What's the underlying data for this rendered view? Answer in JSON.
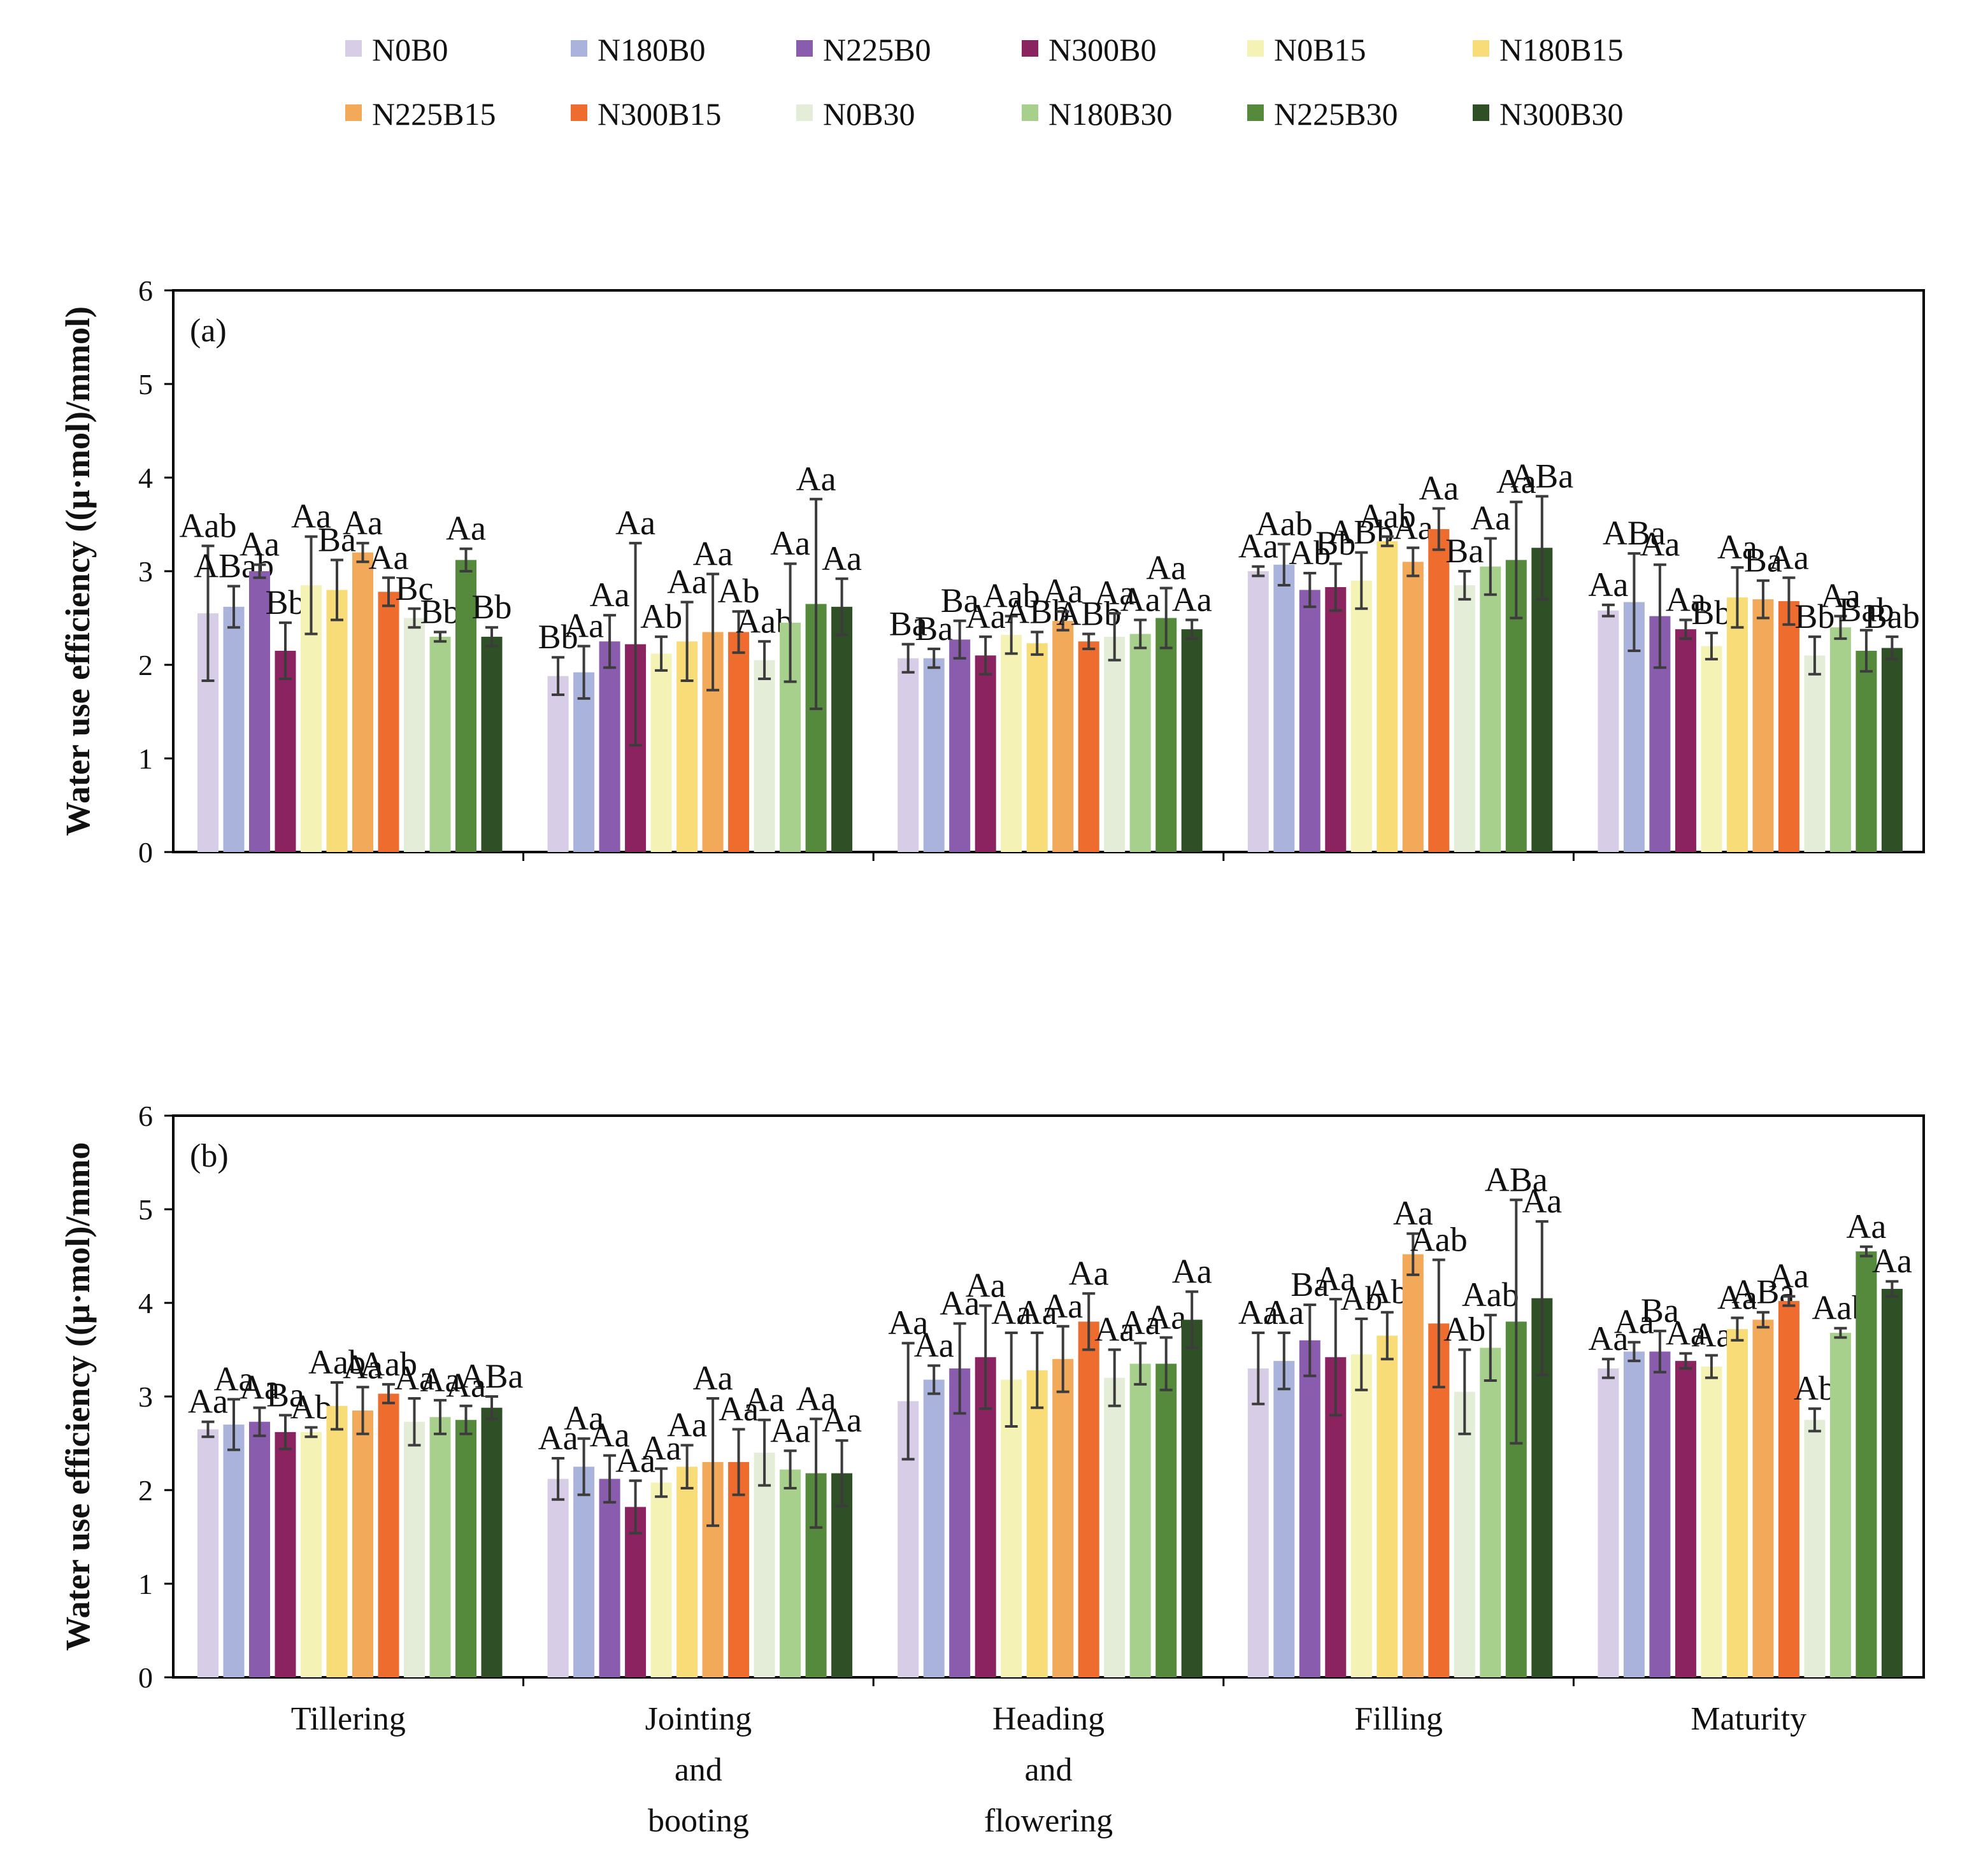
{
  "chart_data": {
    "type": "bar",
    "legend": {
      "placement": "top",
      "entries": [
        {
          "name": "N0B0",
          "color": "#d8cde6"
        },
        {
          "name": "N180B0",
          "color": "#aab3dc"
        },
        {
          "name": "N225B0",
          "color": "#8a5cad"
        },
        {
          "name": "N300B0",
          "color": "#8b2361"
        },
        {
          "name": "N0B15",
          "color": "#f5f2b5"
        },
        {
          "name": "N180B15",
          "color": "#f7dc78"
        },
        {
          "name": "N225B15",
          "color": "#f2a95a"
        },
        {
          "name": "N300B15",
          "color": "#ee6c2e"
        },
        {
          "name": "N0B30",
          "color": "#e3edd8"
        },
        {
          "name": "N180B30",
          "color": "#a8d08d"
        },
        {
          "name": "N225B30",
          "color": "#558a3c"
        },
        {
          "name": "N300B30",
          "color": "#2f4f26"
        }
      ]
    },
    "categories": [
      "Tillering",
      "Jointing and booting",
      "Heading and flowering",
      "Filling",
      "Maturity"
    ],
    "category_lines": [
      [
        "Tillering"
      ],
      [
        "Jointing",
        "and",
        "booting"
      ],
      [
        "Heading",
        "and",
        "flowering"
      ],
      [
        "Filling"
      ],
      [
        "Maturity"
      ]
    ],
    "ylabel": "Water use efficiency ((μ·mol)/mmol)",
    "ylabel_b": "Water use efficiency ((μ·mol)/mmo",
    "ylim": [
      0,
      6
    ],
    "yticks": [
      "0",
      "1",
      "2",
      "3",
      "4",
      "5",
      "6"
    ],
    "panels": [
      {
        "label": "(a)",
        "series": [
          {
            "name": "N0B0",
            "values": [
              2.55,
              1.88,
              2.07,
              3.0,
              2.58
            ],
            "errors": [
              0.72,
              0.2,
              0.15,
              0.05,
              0.06
            ],
            "labels": [
              "Aab",
              "Bb",
              "Ba",
              "Aa",
              "Aa"
            ]
          },
          {
            "name": "N180B0",
            "values": [
              2.62,
              1.92,
              2.07,
              3.07,
              2.67
            ],
            "errors": [
              0.22,
              0.28,
              0.1,
              0.22,
              0.52
            ],
            "labels": [
              "ABab",
              "Aa",
              "Ba",
              "Aab",
              "ABa"
            ]
          },
          {
            "name": "N225B0",
            "values": [
              3.0,
              2.25,
              2.27,
              2.8,
              2.52
            ],
            "errors": [
              0.07,
              0.28,
              0.2,
              0.18,
              0.55
            ],
            "labels": [
              "Aa",
              "Aa",
              "Ba",
              "Ab",
              "Aa"
            ]
          },
          {
            "name": "N300B0",
            "values": [
              2.15,
              2.22,
              2.1,
              2.83,
              2.38
            ],
            "errors": [
              0.3,
              1.08,
              0.2,
              0.25,
              0.1
            ],
            "labels": [
              "Bb",
              "Aa",
              "Aa",
              "Bb",
              "Aa"
            ]
          },
          {
            "name": "N0B15",
            "values": [
              2.85,
              2.12,
              2.32,
              2.9,
              2.2
            ],
            "errors": [
              0.52,
              0.18,
              0.2,
              0.3,
              0.14
            ],
            "labels": [
              "Aa",
              "Ab",
              "Aab",
              "ABb",
              "Bb"
            ]
          },
          {
            "name": "N180B15",
            "values": [
              2.8,
              2.25,
              2.23,
              3.32,
              2.72
            ],
            "errors": [
              0.32,
              0.42,
              0.12,
              0.05,
              0.32
            ],
            "labels": [
              "Ba",
              "Aa",
              "ABb",
              "Aab",
              "Aa"
            ]
          },
          {
            "name": "N225B15",
            "values": [
              3.2,
              2.35,
              2.47,
              3.1,
              2.7
            ],
            "errors": [
              0.1,
              0.62,
              0.1,
              0.15,
              0.2
            ],
            "labels": [
              "Aa",
              "Aa",
              "Aa",
              "Aa",
              "Ba"
            ]
          },
          {
            "name": "N300B15",
            "values": [
              2.78,
              2.35,
              2.25,
              3.45,
              2.68
            ],
            "errors": [
              0.15,
              0.22,
              0.08,
              0.22,
              0.25
            ],
            "labels": [
              "Aa",
              "Ab",
              "ABb",
              "Aa",
              "Aa"
            ]
          },
          {
            "name": "N0B30",
            "values": [
              2.5,
              2.05,
              2.3,
              2.85,
              2.1
            ],
            "errors": [
              0.1,
              0.2,
              0.25,
              0.15,
              0.2
            ],
            "labels": [
              "Bc",
              "Aab",
              "Aa",
              "Ba",
              "Bb"
            ]
          },
          {
            "name": "N180B30",
            "values": [
              2.3,
              2.45,
              2.33,
              3.05,
              2.4
            ],
            "errors": [
              0.05,
              0.63,
              0.15,
              0.3,
              0.12
            ],
            "labels": [
              "Bb",
              "Aa",
              "Aa",
              "Aa",
              "Aa"
            ]
          },
          {
            "name": "N225B30",
            "values": [
              3.12,
              2.65,
              2.5,
              3.12,
              2.15
            ],
            "errors": [
              0.12,
              1.12,
              0.32,
              0.62,
              0.22
            ],
            "labels": [
              "Aa",
              "Aa",
              "Aa",
              "Aa",
              "Bab"
            ]
          },
          {
            "name": "N300B30",
            "values": [
              2.3,
              2.62,
              2.38,
              3.25,
              2.18
            ],
            "errors": [
              0.1,
              0.3,
              0.1,
              0.55,
              0.12
            ],
            "labels": [
              "Bb",
              "Aa",
              "Aa",
              "ABa",
              "Bab"
            ]
          }
        ]
      },
      {
        "label": "(b)",
        "series": [
          {
            "name": "N0B0",
            "values": [
              2.65,
              2.12,
              2.95,
              3.3,
              3.3
            ],
            "errors": [
              0.08,
              0.22,
              0.62,
              0.38,
              0.1
            ],
            "labels": [
              "Aa",
              "Aa",
              "Aa",
              "Aa",
              "Aa"
            ]
          },
          {
            "name": "N180B0",
            "values": [
              2.7,
              2.25,
              3.18,
              3.38,
              3.48
            ],
            "errors": [
              0.27,
              0.3,
              0.15,
              0.3,
              0.1
            ],
            "labels": [
              "Aa",
              "Aa",
              "Aa",
              "Aa",
              "Aa"
            ]
          },
          {
            "name": "N225B0",
            "values": [
              2.73,
              2.12,
              3.3,
              3.6,
              3.48
            ],
            "errors": [
              0.15,
              0.25,
              0.48,
              0.38,
              0.22
            ],
            "labels": [
              "Aa",
              "Aa",
              "Aa",
              "Ba",
              "Ba"
            ]
          },
          {
            "name": "N300B0",
            "values": [
              2.62,
              1.82,
              3.42,
              3.42,
              3.38
            ],
            "errors": [
              0.18,
              0.28,
              0.55,
              0.62,
              0.08
            ],
            "labels": [
              "Ba",
              "Aa",
              "Aa",
              "Aa",
              "Aa"
            ]
          },
          {
            "name": "N0B15",
            "values": [
              2.62,
              2.08,
              3.18,
              3.45,
              3.32
            ],
            "errors": [
              0.05,
              0.15,
              0.5,
              0.38,
              0.12
            ],
            "labels": [
              "Ab",
              "Aa",
              "Aa",
              "Ab",
              "Aa"
            ]
          },
          {
            "name": "N180B15",
            "values": [
              2.9,
              2.25,
              3.28,
              3.65,
              3.72
            ],
            "errors": [
              0.25,
              0.23,
              0.4,
              0.25,
              0.12
            ],
            "labels": [
              "Aab",
              "Aa",
              "Aa",
              "Ab",
              "Aa"
            ]
          },
          {
            "name": "N225B15",
            "values": [
              2.85,
              2.3,
              3.4,
              4.52,
              3.82
            ],
            "errors": [
              0.25,
              0.68,
              0.35,
              0.22,
              0.08
            ],
            "labels": [
              "Aa",
              "Aa",
              "Aa",
              "Aa",
              "ABa"
            ]
          },
          {
            "name": "N300B15",
            "values": [
              3.03,
              2.3,
              3.8,
              3.78,
              4.02
            ],
            "errors": [
              0.1,
              0.35,
              0.3,
              0.68,
              0.05
            ],
            "labels": [
              "Aab",
              "Aa",
              "Aa",
              "Aab",
              "Aa"
            ]
          },
          {
            "name": "N0B30",
            "values": [
              2.73,
              2.4,
              3.2,
              3.05,
              2.75
            ],
            "errors": [
              0.25,
              0.35,
              0.3,
              0.45,
              0.12
            ],
            "labels": [
              "Aa",
              "Aa",
              "Aa",
              "Ab",
              "Ab"
            ]
          },
          {
            "name": "N180B30",
            "values": [
              2.78,
              2.22,
              3.35,
              3.52,
              3.68
            ],
            "errors": [
              0.18,
              0.2,
              0.22,
              0.35,
              0.05
            ],
            "labels": [
              "Aa",
              "Aa",
              "Aa",
              "Aab",
              "Aab"
            ]
          },
          {
            "name": "N225B30",
            "values": [
              2.75,
              2.18,
              3.35,
              3.8,
              4.55
            ],
            "errors": [
              0.15,
              0.58,
              0.28,
              1.3,
              0.05
            ],
            "labels": [
              "Aa",
              "Aa",
              "Aa",
              "ABa",
              "Aa"
            ]
          },
          {
            "name": "N300B30",
            "values": [
              2.88,
              2.18,
              3.82,
              4.05,
              4.15
            ],
            "errors": [
              0.12,
              0.35,
              0.3,
              0.82,
              0.08
            ],
            "labels": [
              "ABa",
              "Aa",
              "Aa",
              "Aa",
              "Aa"
            ]
          }
        ]
      }
    ]
  }
}
